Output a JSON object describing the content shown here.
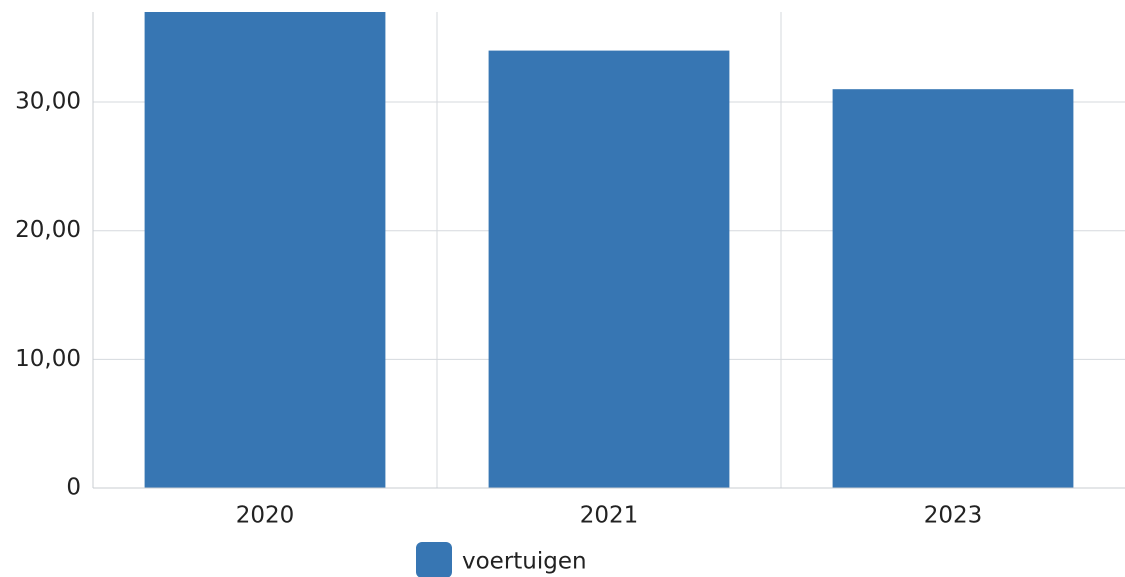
{
  "chart_data": {
    "type": "bar",
    "categories": [
      "2020",
      "2021",
      "2023"
    ],
    "series": [
      {
        "name": "voertuigen",
        "color": "#3776b3",
        "values": [
          37,
          34,
          31
        ]
      }
    ],
    "ylim": [
      0,
      37
    ],
    "yticks": [
      0,
      {
        "value": 10,
        "label": "10,00"
      },
      {
        "value": 20,
        "label": "20,00"
      },
      {
        "value": 30,
        "label": "30,00"
      }
    ],
    "grid": true,
    "legend": "bottom"
  }
}
